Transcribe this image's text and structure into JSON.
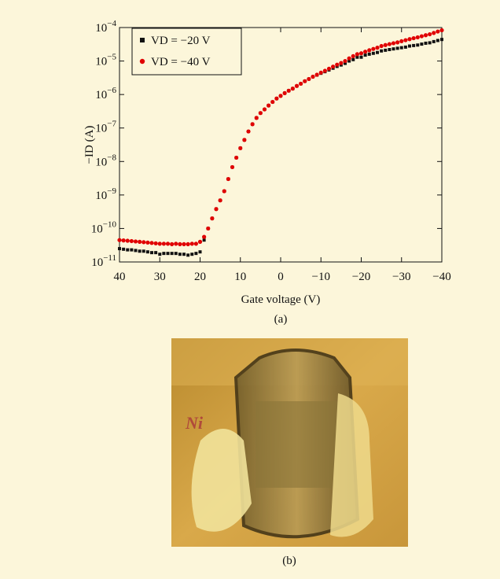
{
  "chart_data": {
    "type": "scatter",
    "x_label": "Gate voltage (V)",
    "y_label": "−ID (A)",
    "caption": "(a)",
    "xlim": [
      40,
      -40
    ],
    "xticks": [
      40,
      30,
      20,
      10,
      0,
      {
        "value": -10,
        "label": "−10"
      },
      {
        "value": -20,
        "label": "−20"
      },
      {
        "value": -30,
        "label": "−30"
      },
      {
        "value": -40,
        "label": "−40"
      }
    ],
    "ylim": [
      1e-11,
      0.0001
    ],
    "yscale": "log",
    "yticks": [
      {
        "value": 1e-11,
        "label": "10",
        "exponent": "−11"
      },
      {
        "value": 1e-10,
        "label": "10",
        "exponent": "−10"
      },
      {
        "value": 1e-09,
        "label": "10",
        "exponent": "−9"
      },
      {
        "value": 1e-08,
        "label": "10",
        "exponent": "−8"
      },
      {
        "value": 1e-07,
        "label": "10",
        "exponent": "−7"
      },
      {
        "value": 1e-06,
        "label": "10",
        "exponent": "−6"
      },
      {
        "value": 1e-05,
        "label": "10",
        "exponent": "−5"
      },
      {
        "value": 0.0001,
        "label": "10",
        "exponent": "−4"
      }
    ],
    "legend": "upper left",
    "x": [
      40,
      39,
      38,
      37,
      36,
      35,
      34,
      33,
      32,
      31,
      30,
      29,
      28,
      27,
      26,
      25,
      24,
      23,
      22,
      21,
      20,
      19,
      18,
      17,
      16,
      15,
      14,
      13,
      12,
      11,
      10,
      9,
      8,
      7,
      6,
      5,
      4,
      3,
      2,
      1,
      0,
      -1,
      -2,
      -3,
      -4,
      -5,
      -6,
      -7,
      -8,
      -9,
      -10,
      -11,
      -12,
      -13,
      -14,
      -15,
      -16,
      -17,
      -18,
      -19,
      -20,
      -21,
      -22,
      -23,
      -24,
      -25,
      -26,
      -27,
      -28,
      -29,
      -30,
      -31,
      -32,
      -33,
      -34,
      -35,
      -36,
      -37,
      -38,
      -39,
      -40
    ],
    "series": [
      {
        "name": "VD = −20 V",
        "color": "#111111",
        "marker": "square",
        "values": [
          2.5e-11,
          2.4e-11,
          2.3e-11,
          2.3e-11,
          2.2e-11,
          2.1e-11,
          2.1e-11,
          2e-11,
          1.9e-11,
          1.9e-11,
          1.7e-11,
          1.8e-11,
          1.8e-11,
          1.8e-11,
          1.8e-11,
          1.7e-11,
          1.7e-11,
          1.6e-11,
          1.7e-11,
          1.8e-11,
          2e-11,
          4.5e-11,
          1e-10,
          2e-10,
          3.8e-10,
          6.9e-10,
          1.3e-09,
          3e-09,
          6.8e-09,
          1.3e-08,
          2.5e-08,
          4.4e-08,
          7.9e-08,
          1.3e-07,
          2e-07,
          2.8e-07,
          3.6e-07,
          4.7e-07,
          6e-07,
          7.6e-07,
          9.1e-07,
          1.1e-06,
          1.3e-06,
          1.5e-06,
          1.8e-06,
          2.1e-06,
          2.5e-06,
          2.9e-06,
          3.4e-06,
          3.8e-06,
          4.3e-06,
          4.8e-06,
          5.4e-06,
          6.1e-06,
          6.9e-06,
          7.6e-06,
          8.5e-06,
          1e-05,
          1.1e-05,
          1.3e-05,
          1.3e-05,
          1.5e-05,
          1.6e-05,
          1.7e-05,
          1.8e-05,
          2e-05,
          2.1e-05,
          2.2e-05,
          2.3e-05,
          2.4e-05,
          2.5e-05,
          2.6e-05,
          2.8e-05,
          2.9e-05,
          3e-05,
          3.2e-05,
          3.4e-05,
          3.5e-05,
          3.8e-05,
          4.1e-05,
          4.4e-05
        ]
      },
      {
        "name": "VD = −40 V",
        "color": "#e00000",
        "marker": "circle",
        "values": [
          4.5e-11,
          4.4e-11,
          4.3e-11,
          4.2e-11,
          4.1e-11,
          4e-11,
          3.9e-11,
          3.8e-11,
          3.7e-11,
          3.6e-11,
          3.5e-11,
          3.5e-11,
          3.5e-11,
          3.4e-11,
          3.5e-11,
          3.4e-11,
          3.4e-11,
          3.4e-11,
          3.5e-11,
          3.5e-11,
          4e-11,
          5.6e-11,
          1e-10,
          2e-10,
          3.8e-10,
          6.9e-10,
          1.3e-09,
          3e-09,
          6.8e-09,
          1.3e-08,
          2.5e-08,
          4.4e-08,
          7.9e-08,
          1.3e-07,
          2e-07,
          2.8e-07,
          3.6e-07,
          4.7e-07,
          6e-07,
          7.6e-07,
          9.1e-07,
          1.1e-06,
          1.3e-06,
          1.5e-06,
          1.8e-06,
          2.1e-06,
          2.5e-06,
          2.9e-06,
          3.4e-06,
          3.9e-06,
          4.5e-06,
          5.1e-06,
          5.9e-06,
          6.8e-06,
          7.8e-06,
          8.7e-06,
          1e-05,
          1.2e-05,
          1.4e-05,
          1.6e-05,
          1.7e-05,
          1.9e-05,
          2.1e-05,
          2.3e-05,
          2.5e-05,
          2.8e-05,
          3e-05,
          3.2e-05,
          3.4e-05,
          3.6e-05,
          3.9e-05,
          4.2e-05,
          4.5e-05,
          4.8e-05,
          5.1e-05,
          5.5e-05,
          5.9e-05,
          6.3e-05,
          6.9e-05,
          7.6e-05,
          8.3e-05
        ]
      }
    ]
  },
  "photo": {
    "caption": "(b)"
  }
}
